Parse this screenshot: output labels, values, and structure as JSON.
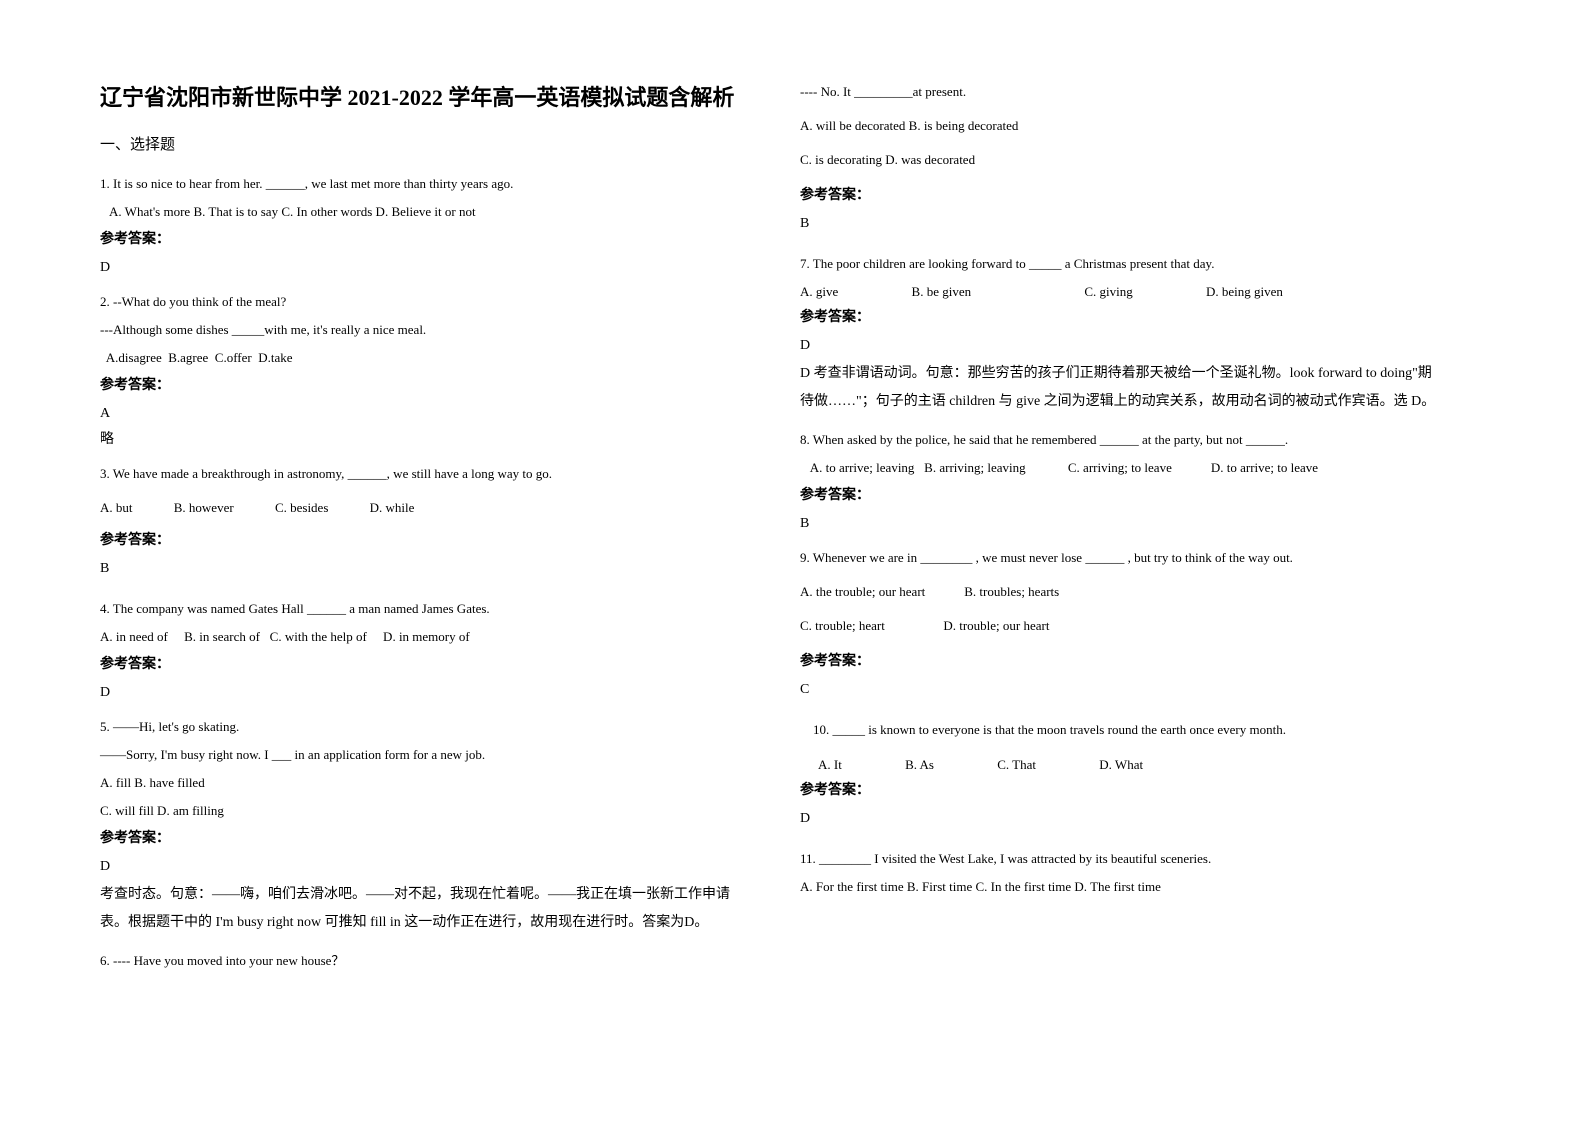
{
  "title": "辽宁省沈阳市新世际中学 2021-2022 学年高一英语模拟试题含解析",
  "section1": "一、选择题",
  "q1": {
    "stem": "1. It is so nice to hear from her. ______, we last met more than thirty years ago.",
    "opts": "   A. What's more B. That is to say C. In other words D. Believe it or not",
    "label": "参考答案：",
    "ans": "D"
  },
  "q2": {
    "stem": "2. --What do you think of the meal?",
    "line2": "  ---Although some dishes _____with me, it's really a nice meal.",
    "opts": "  A.disagree  B.agree  C.offer  D.take",
    "label": "参考答案：",
    "ans": "A",
    "expl": "略"
  },
  "q3": {
    "stem": "3. We have made a breakthrough in astronomy, ______, we still have a long way to go.",
    "optA": "A. but",
    "optB": "B. however",
    "optC": "C. besides",
    "optD": "D. while",
    "label": "参考答案：",
    "ans": "B"
  },
  "q4": {
    "stem": "4. The company was named Gates Hall ______ a man named James Gates.",
    "opts": "A. in need of     B. in search of   C. with the help of     D. in memory of",
    "label": "参考答案：",
    "ans": "D"
  },
  "q5": {
    "stem": "5. ——Hi, let's go skating.",
    "line2": "——Sorry, I'm busy right now. I ___ in an application form for a new job.",
    "opts1": "A. fill   B. have filled",
    "opts2": "C. will fill   D. am filling",
    "label": "参考答案：",
    "ans": "D",
    "expl": "考查时态。句意：——嗨，咱们去滑冰吧。——对不起，我现在忙着呢。——我正在填一张新工作申请表。根据题干中的 I'm busy right now 可推知 fill in 这一动作正在进行，故用现在进行时。答案为D。"
  },
  "q6": {
    "stem": "6. ---- Have you moved into your new house？",
    "line2": "---- No. It _________at present.",
    "opts1": "A. will be decorated      B. is being decorated",
    "opts2": "C. is decorating      D. was decorated",
    "label": "参考答案：",
    "ans": "B"
  },
  "q7": {
    "stem": "7. The poor children are looking forward to _____ a Christmas present that day.",
    "optA": "A. give",
    "optB": "B. be given",
    "optC": "C. giving",
    "optD": "D. being given",
    "label": "参考答案：",
    "ans": "D",
    "expl": "D 考查非谓语动词。句意：那些穷苦的孩子们正期待着那天被给一个圣诞礼物。look forward to doing\"期待做……\"；句子的主语 children 与 give 之间为逻辑上的动宾关系，故用动名词的被动式作宾语。选 D。"
  },
  "q8": {
    "stem": "8. When asked by the police, he said that he remembered ______ at the party, but not ______.",
    "opts": "   A. to arrive; leaving   B. arriving; leaving             C. arriving; to leave            D. to arrive; to leave",
    "label": "参考答案：",
    "ans": "B"
  },
  "q9": {
    "stem": "9. Whenever we are in ________ , we must never lose ______ , but try to think of the way out.",
    "opts1": "A. the trouble; our heart            B. troubles; hearts",
    "opts2": "C. trouble; heart                  D. trouble; our heart",
    "label": "参考答案：",
    "ans": "C"
  },
  "q10": {
    "stem": "    10. _____ is known to everyone is that the moon travels round the earth once every month.",
    "optA": "A. It",
    "optB": "B. As",
    "optC": "C. That",
    "optD": "D. What",
    "label": "参考答案：",
    "ans": "D"
  },
  "q11": {
    "stem": "11. ________ I visited the West Lake, I was attracted by its beautiful sceneries.",
    "opts": "A. For the first time   B. First time    C. In the first time D. The first time"
  }
}
